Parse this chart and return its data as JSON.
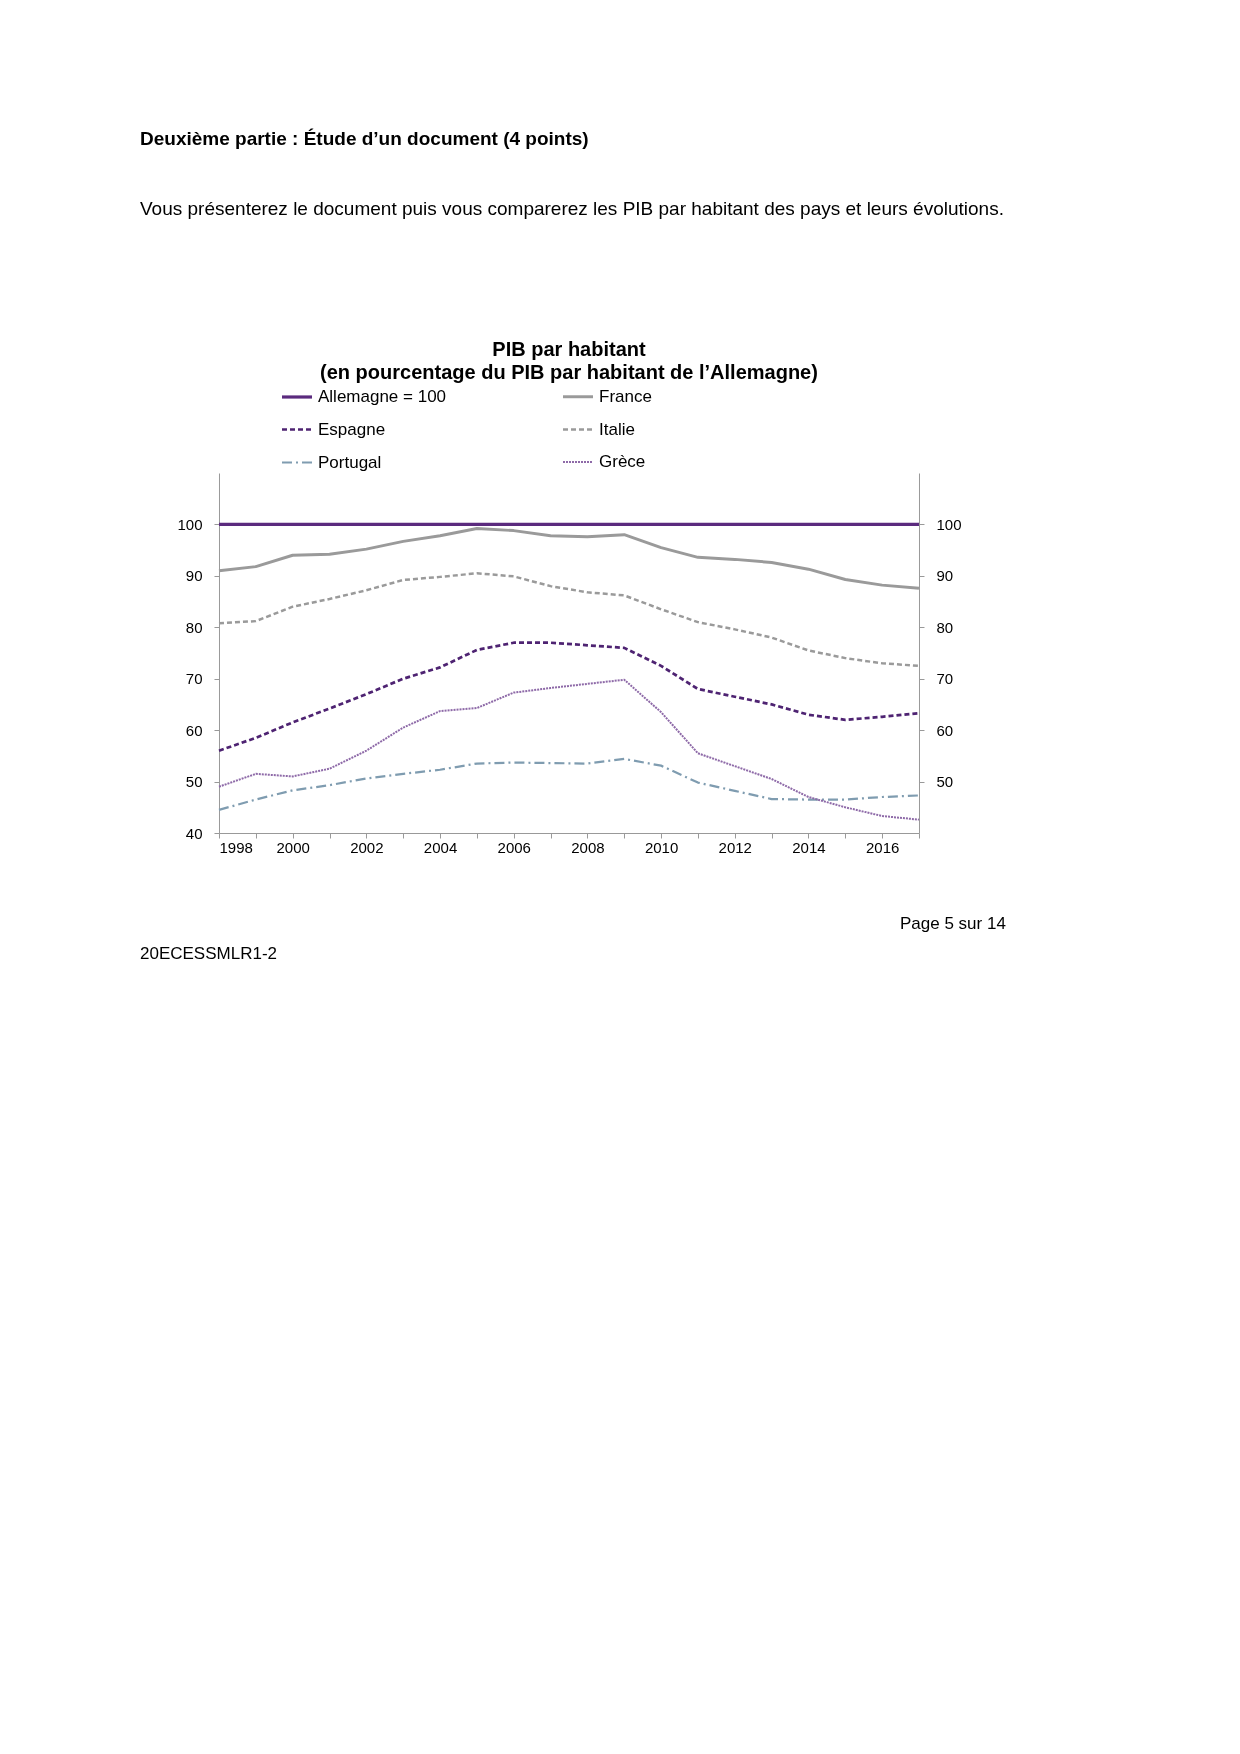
{
  "chart_data": {
    "type": "line",
    "title": "PIB par habitant",
    "subtitle": "(en pourcentage du PIB par habitant de l’Allemagne)",
    "annotations": [
      "Deuxième partie : Étude d’un document   (4 points)",
      "Vous présenterez le document puis vous comparerez les PIB par habitant des pays et leurs évolutions.",
      "Page 5 sur 14",
      "20ECESSMLR1-2"
    ],
    "x": [
      1998,
      1999,
      2000,
      2001,
      2002,
      2003,
      2004,
      2005,
      2006,
      2007,
      2008,
      2009,
      2010,
      2011,
      2012,
      2013,
      2014,
      2015,
      2016,
      2017
    ],
    "series": [
      {
        "name": "Allemagne = 100",
        "color": "#5b2a7e",
        "line_style": "solid",
        "values": [
          100,
          100,
          100,
          100,
          100,
          100,
          100,
          100,
          100,
          100,
          100,
          100,
          100,
          100,
          100,
          100,
          100,
          100,
          100,
          100
        ]
      },
      {
        "name": "France",
        "color": "#9a9a9a",
        "line_style": "solid",
        "values": [
          91,
          91.8,
          94,
          94.2,
          95.2,
          96.7,
          97.8,
          99.2,
          98.8,
          97.8,
          97.6,
          98,
          95.5,
          93.6,
          93.2,
          92.6,
          91.3,
          89.3,
          88.2,
          87.6
        ]
      },
      {
        "name": "Espagne",
        "color": "#4e2372",
        "line_style": "dashed",
        "values": [
          56,
          58.5,
          61.5,
          64.2,
          67,
          70,
          72.2,
          75.6,
          77,
          77,
          76.5,
          76,
          72.5,
          68,
          66.5,
          65,
          63,
          62,
          62.6,
          63.3
        ]
      },
      {
        "name": "Italie",
        "color": "#9a9a9a",
        "line_style": "dashed",
        "values": [
          80.8,
          81.2,
          84,
          85.5,
          87.2,
          89.2,
          89.8,
          90.5,
          89.9,
          88,
          86.8,
          86.2,
          83.5,
          81,
          79.6,
          78,
          75.5,
          74,
          73,
          72.5
        ]
      },
      {
        "name": "Portugal",
        "color": "#7f9cb0",
        "line_style": "dashdot",
        "values": [
          44.5,
          46.5,
          48.3,
          49.3,
          50.6,
          51.5,
          52.3,
          53.5,
          53.7,
          53.6,
          53.5,
          54.4,
          53.1,
          49.8,
          48.2,
          46.6,
          46.5,
          46.5,
          47,
          47.3
        ]
      },
      {
        "name": "Grèce",
        "color": "#8e6aa8",
        "line_style": "dotted",
        "values": [
          49,
          51.5,
          51,
          52.5,
          56,
          60.5,
          63.7,
          64.3,
          67.3,
          68.2,
          69,
          69.8,
          63.5,
          55.5,
          53,
          50.5,
          47,
          45,
          43.3,
          42.6
        ]
      }
    ],
    "xlim": [
      1998,
      2017
    ],
    "xticks": [
      1998,
      {
        "value": 1999,
        "label": null
      },
      2000,
      {
        "value": 2001,
        "label": null
      },
      2002,
      {
        "value": 2003,
        "label": null
      },
      2004,
      {
        "value": 2005,
        "label": null
      },
      2006,
      {
        "value": 2007,
        "label": null
      },
      2008,
      {
        "value": 2009,
        "label": null
      },
      2010,
      {
        "value": 2011,
        "label": null
      },
      2012,
      {
        "value": 2013,
        "label": null
      },
      2014,
      {
        "value": 2015,
        "label": null
      },
      2016,
      {
        "value": 2017,
        "label": null
      }
    ],
    "ylim": [
      40,
      110
    ],
    "yticks": [
      40,
      50,
      60,
      70,
      80,
      90,
      100
    ],
    "y2lim": [
      40,
      110
    ],
    "y2ticks": [
      50,
      60,
      70,
      80,
      90,
      100
    ],
    "grid": false,
    "legend": "top",
    "marker": "none"
  }
}
